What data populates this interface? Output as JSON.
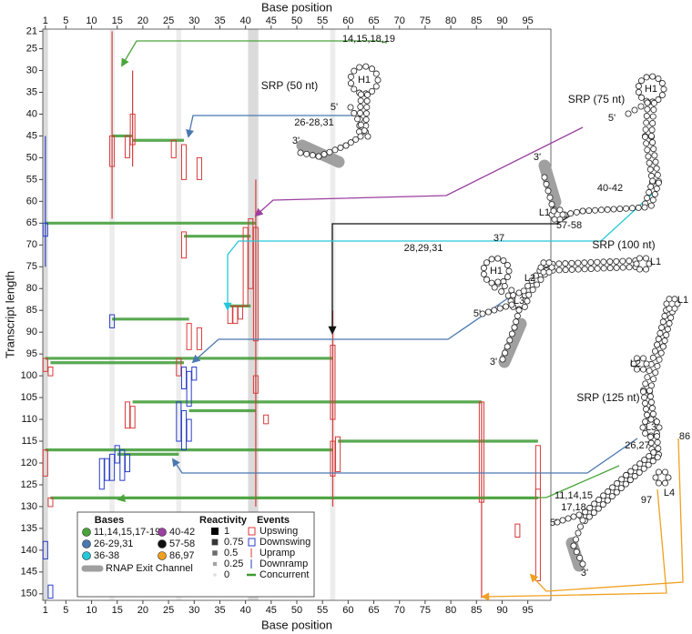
{
  "chart_data": {
    "type": "event-map",
    "x_label": "Base position",
    "y_label": "Transcript length",
    "xlim": [
      0.5,
      99.5
    ],
    "ylim": [
      20.5,
      151.5
    ],
    "xticks": [
      1,
      5,
      10,
      15,
      20,
      25,
      30,
      35,
      40,
      45,
      50,
      55,
      60,
      65,
      70,
      75,
      80,
      85,
      90,
      95
    ],
    "yticks": [
      21,
      25,
      30,
      35,
      40,
      45,
      50,
      55,
      60,
      65,
      70,
      75,
      80,
      85,
      90,
      95,
      100,
      105,
      110,
      115,
      120,
      125,
      130,
      135,
      140,
      145,
      150
    ],
    "reactivity_columns": [
      {
        "base": 1,
        "value": 0.5
      },
      {
        "base": 14,
        "value": 0.25
      },
      {
        "base": 27,
        "value": 0.25
      },
      {
        "base": 41,
        "value": 0.5
      },
      {
        "base": 42,
        "value": 0.5
      },
      {
        "base": 57,
        "value": 0.25
      }
    ],
    "upswing": [
      {
        "base": 14,
        "from": 45,
        "to": 52
      },
      {
        "base": 17,
        "from": 45,
        "to": 50
      },
      {
        "base": 18,
        "from": 40,
        "to": 47
      },
      {
        "base": 26,
        "from": 46,
        "to": 50
      },
      {
        "base": 28,
        "from": 47,
        "to": 55
      },
      {
        "base": 31,
        "from": 50,
        "to": 55
      },
      {
        "base": 28,
        "from": 67,
        "to": 73
      },
      {
        "base": 40,
        "from": 66,
        "to": 84
      },
      {
        "base": 41,
        "from": 64,
        "to": 80
      },
      {
        "base": 42,
        "from": 66,
        "to": 92
      },
      {
        "base": 37,
        "from": 84,
        "to": 88
      },
      {
        "base": 38,
        "from": 84,
        "to": 88
      },
      {
        "base": 39,
        "from": 84,
        "to": 87
      },
      {
        "base": 29,
        "from": 88,
        "to": 94
      },
      {
        "base": 31,
        "from": 89,
        "to": 94
      },
      {
        "base": 1,
        "from": 96,
        "to": 99
      },
      {
        "base": 2,
        "from": 98,
        "to": 100
      },
      {
        "base": 27,
        "from": 96,
        "to": 100
      },
      {
        "base": 42,
        "from": 100,
        "to": 104
      },
      {
        "base": 17,
        "from": 106,
        "to": 112
      },
      {
        "base": 18,
        "from": 107,
        "to": 112
      },
      {
        "base": 44,
        "from": 109,
        "to": 111
      },
      {
        "base": 57,
        "from": 93,
        "to": 110
      },
      {
        "base": 57,
        "from": 115,
        "to": 123
      },
      {
        "base": 58,
        "from": 114,
        "to": 122
      },
      {
        "base": 1,
        "from": 117,
        "to": 123
      },
      {
        "base": 2,
        "from": 128,
        "to": 130
      },
      {
        "base": 86,
        "from": 106,
        "to": 129
      },
      {
        "base": 97,
        "from": 116,
        "to": 128
      },
      {
        "base": 97,
        "from": 126,
        "to": 147
      },
      {
        "base": 93,
        "from": 134,
        "to": 137
      }
    ],
    "downswing": [
      {
        "base": 1,
        "from": 65,
        "to": 68
      },
      {
        "base": 14,
        "from": 86,
        "to": 89
      },
      {
        "base": 28,
        "from": 98,
        "to": 103
      },
      {
        "base": 29,
        "from": 99,
        "to": 107
      },
      {
        "base": 30,
        "from": 98,
        "to": 101
      },
      {
        "base": 27,
        "from": 106,
        "to": 115
      },
      {
        "base": 28,
        "from": 108,
        "to": 117
      },
      {
        "base": 29,
        "from": 110,
        "to": 115
      },
      {
        "base": 15,
        "from": 116,
        "to": 120
      },
      {
        "base": 12,
        "from": 119,
        "to": 126
      },
      {
        "base": 13,
        "from": 119,
        "to": 124
      },
      {
        "base": 14,
        "from": 118,
        "to": 124
      },
      {
        "base": 16,
        "from": 117,
        "to": 124
      },
      {
        "base": 17,
        "from": 118,
        "to": 122
      },
      {
        "base": 1,
        "from": 138,
        "to": 142
      },
      {
        "base": 2,
        "from": 148,
        "to": 151
      }
    ],
    "upramp": [
      {
        "base": 14,
        "from": 21,
        "to": 64
      },
      {
        "base": 18,
        "from": 30,
        "to": 52
      },
      {
        "base": 42,
        "from": 55,
        "to": 130
      },
      {
        "base": 57,
        "from": 85,
        "to": 130
      },
      {
        "base": 86,
        "from": 106,
        "to": 151
      }
    ],
    "downramp": [
      {
        "base": 1,
        "from": 45,
        "to": 75
      }
    ],
    "concurrent": [
      {
        "length": 45,
        "from": 14,
        "to": 18
      },
      {
        "length": 46,
        "from": 18,
        "to": 28
      },
      {
        "length": 65,
        "from": 1,
        "to": 42
      },
      {
        "length": 68,
        "from": 28,
        "to": 41
      },
      {
        "length": 84,
        "from": 37,
        "to": 41
      },
      {
        "length": 87,
        "from": 14,
        "to": 29
      },
      {
        "length": 96,
        "from": 1,
        "to": 57
      },
      {
        "length": 97,
        "from": 2,
        "to": 28
      },
      {
        "length": 106,
        "from": 18,
        "to": 86
      },
      {
        "length": 108,
        "from": 29,
        "to": 42
      },
      {
        "length": 115,
        "from": 58,
        "to": 97
      },
      {
        "length": 117,
        "from": 1,
        "to": 57
      },
      {
        "length": 118,
        "from": 15,
        "to": 27
      },
      {
        "length": 128,
        "from": 2,
        "to": 97
      }
    ],
    "annotations": [
      {
        "text": "14,15,18,19",
        "color": "#4aa43a"
      },
      {
        "text": "SRP (50 nt)",
        "color": "#111111"
      },
      {
        "text": "H1",
        "color": "#111111"
      },
      {
        "text": "5'",
        "color": "#111111"
      },
      {
        "text": "26-28,31",
        "color": "#4a78b0"
      },
      {
        "text": "3'",
        "color": "#111111"
      },
      {
        "text": "SRP (75 nt)",
        "color": "#111111"
      },
      {
        "text": "H1",
        "color": "#111111"
      },
      {
        "text": "5'",
        "color": "#111111"
      },
      {
        "text": "3'",
        "color": "#111111"
      },
      {
        "text": "40-42",
        "color": "#9b3fa0"
      },
      {
        "text": "L1",
        "color": "#111111"
      },
      {
        "text": "57-58",
        "color": "#111111"
      },
      {
        "text": "37",
        "color": "#25c8d8"
      },
      {
        "text": "SRP (100 nt)",
        "color": "#111111"
      },
      {
        "text": "28,29,31",
        "color": "#4a78b0"
      },
      {
        "text": "H1",
        "color": "#111111"
      },
      {
        "text": "L1",
        "color": "#111111"
      },
      {
        "text": "L2",
        "color": "#111111"
      },
      {
        "text": "L3",
        "color": "#111111"
      },
      {
        "text": "5'",
        "color": "#111111"
      },
      {
        "text": "3'",
        "color": "#111111"
      },
      {
        "text": "L1",
        "color": "#111111"
      },
      {
        "text": "L2",
        "color": "#111111"
      },
      {
        "text": "SRP (125 nt)",
        "color": "#111111"
      },
      {
        "text": "L3",
        "color": "#111111"
      },
      {
        "text": "26,27",
        "color": "#4a78b0"
      },
      {
        "text": "86",
        "color": "#f0a020"
      },
      {
        "text": "11,14,15",
        "color": "#4aa43a"
      },
      {
        "text": "17,18",
        "color": "#4aa43a"
      },
      {
        "text": "L4",
        "color": "#111111"
      },
      {
        "text": "97",
        "color": "#f0a020"
      },
      {
        "text": "5'",
        "color": "#111111"
      },
      {
        "text": "3'",
        "color": "#111111"
      }
    ],
    "legend": {
      "bases": {
        "title": "Bases",
        "items": [
          {
            "label": "11,14,15,17-19",
            "color": "#4aa43a"
          },
          {
            "label": "26-29,31",
            "color": "#4a78b0"
          },
          {
            "label": "36-38",
            "color": "#25c8d8"
          },
          {
            "label": "40-42",
            "color": "#9b3fa0"
          },
          {
            "label": "57-58",
            "color": "#111111"
          },
          {
            "label": "86,97",
            "color": "#f0a020"
          }
        ],
        "channel": "RNAP Exit Channel",
        "channel_color": "#a0a0a0"
      },
      "reactivity": {
        "title": "Reactivity",
        "levels": [
          1,
          0.75,
          0.5,
          0.25,
          0
        ]
      },
      "events": {
        "title": "Events",
        "items": [
          {
            "label": "Upswing",
            "color": "#d83a3a"
          },
          {
            "label": "Downswing",
            "color": "#2a3fc8"
          },
          {
            "label": "Upramp",
            "color": "#d83a3a"
          },
          {
            "label": "Downramp",
            "color": "#2a3fc8"
          },
          {
            "label": "Concurrent",
            "color": "#3c9a32"
          }
        ]
      }
    }
  }
}
